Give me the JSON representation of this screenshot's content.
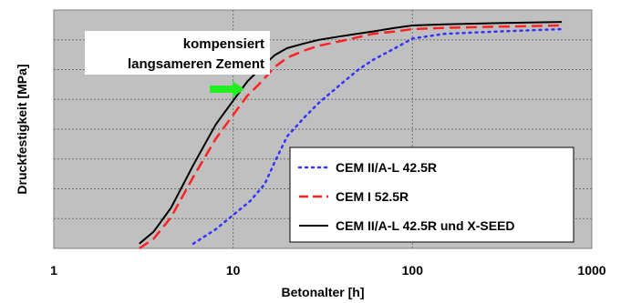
{
  "chart_data": {
    "type": "line",
    "xscale": "log",
    "xlim": [
      1,
      1000
    ],
    "ylim": [
      0,
      1
    ],
    "xlabel": "Betonalter [h]",
    "ylabel": "Druckfestigkeit [MPa]",
    "xticks": [
      "1",
      "10",
      "100",
      "1000"
    ],
    "grid": true,
    "legend_position": "bottom-right",
    "background_color": "#c0c0c0",
    "annotation": {
      "lines": [
        "kompensiert",
        "langsameren Zement"
      ],
      "arrow_color": "#22ee22"
    },
    "series": [
      {
        "name": "CEM II/A-L 42.5R",
        "color": "#3333ff",
        "style": "dotted",
        "points": [
          [
            6,
            0.02
          ],
          [
            8,
            0.08
          ],
          [
            10,
            0.14
          ],
          [
            12.5,
            0.2
          ],
          [
            15,
            0.27
          ],
          [
            17,
            0.36
          ],
          [
            20,
            0.47
          ],
          [
            25,
            0.55
          ],
          [
            30,
            0.61
          ],
          [
            40,
            0.69
          ],
          [
            50,
            0.75
          ],
          [
            60,
            0.79
          ],
          [
            80,
            0.84
          ],
          [
            100,
            0.88
          ],
          [
            150,
            0.9
          ],
          [
            300,
            0.91
          ],
          [
            680,
            0.92
          ]
        ]
      },
      {
        "name": "CEM I 52.5R",
        "color": "#ff2222",
        "style": "dashed",
        "points": [
          [
            3,
            0.0
          ],
          [
            3.6,
            0.04
          ],
          [
            4.5,
            0.13
          ],
          [
            6,
            0.3
          ],
          [
            8,
            0.46
          ],
          [
            10,
            0.56
          ],
          [
            12,
            0.64
          ],
          [
            14,
            0.69
          ],
          [
            17,
            0.76
          ],
          [
            20,
            0.8
          ],
          [
            25,
            0.83
          ],
          [
            30,
            0.85
          ],
          [
            40,
            0.87
          ],
          [
            60,
            0.9
          ],
          [
            80,
            0.91
          ],
          [
            100,
            0.92
          ],
          [
            150,
            0.925
          ],
          [
            300,
            0.93
          ],
          [
            680,
            0.935
          ]
        ]
      },
      {
        "name": "CEM II/A-L 42.5R und X-SEED",
        "color": "#000000",
        "style": "solid",
        "points": [
          [
            3,
            0.02
          ],
          [
            3.6,
            0.07
          ],
          [
            4.5,
            0.17
          ],
          [
            6,
            0.35
          ],
          [
            8,
            0.52
          ],
          [
            10,
            0.62
          ],
          [
            12,
            0.7
          ],
          [
            14,
            0.75
          ],
          [
            17,
            0.81
          ],
          [
            20,
            0.84
          ],
          [
            25,
            0.86
          ],
          [
            30,
            0.875
          ],
          [
            40,
            0.89
          ],
          [
            60,
            0.91
          ],
          [
            80,
            0.925
          ],
          [
            100,
            0.935
          ],
          [
            150,
            0.94
          ],
          [
            300,
            0.945
          ],
          [
            680,
            0.95
          ]
        ]
      }
    ]
  }
}
